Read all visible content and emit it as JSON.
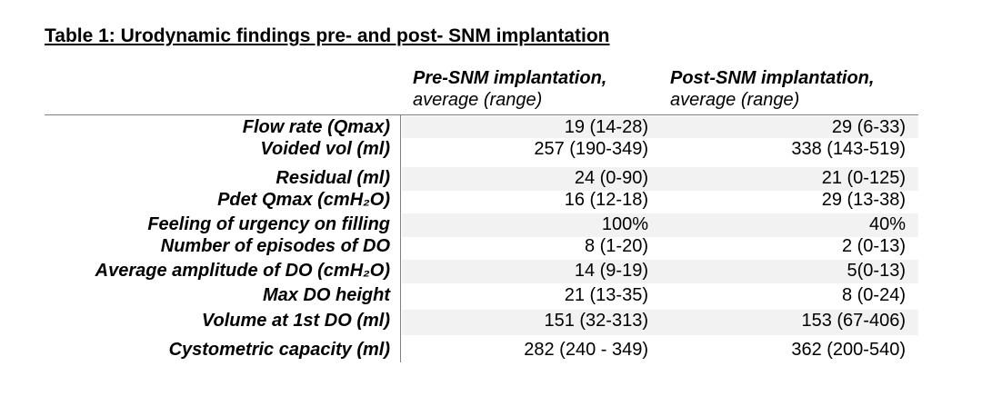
{
  "title": "Table 1: Urodynamic findings pre- and post- SNM implantation",
  "columns": {
    "pre": {
      "heading": "Pre-SNM implantation,",
      "subheading": "average (range)"
    },
    "post": {
      "heading": "Post-SNM implantation,",
      "subheading": "average (range)"
    }
  },
  "rows": [
    {
      "label": "Flow rate (Qmax)",
      "pre": "19 (14-28)",
      "post": "29 (6-33)",
      "shaded": true
    },
    {
      "label": "Voided vol (ml)",
      "pre": "257 (190-349)",
      "post": "338 (143-519)",
      "shaded": false
    },
    {
      "label": "Residual (ml)",
      "pre": "24 (0-90)",
      "post": "21 (0-125)",
      "shaded": true
    },
    {
      "label": "Pdet Qmax (cmH₂O)",
      "pre": "16 (12-18)",
      "post": "29 (13-38)",
      "shaded": false
    },
    {
      "label": "Feeling of urgency on filling",
      "pre": "100%",
      "post": "40%",
      "shaded": true
    },
    {
      "label": "Number of episodes of DO",
      "pre": "8 (1-20)",
      "post": "2 (0-13)",
      "shaded": false
    },
    {
      "label": "Average amplitude of DO (cmH₂O)",
      "pre": "14 (9-19)",
      "post": "5(0-13)",
      "shaded": true
    },
    {
      "label": "Max DO height",
      "pre": "21 (13-35)",
      "post": "8 (0-24)",
      "shaded": false
    },
    {
      "label": "Volume at 1st DO (ml)",
      "pre": "151 (32-313)",
      "post": "153 (67-406)",
      "shaded": true
    },
    {
      "label": "Cystometric capacity (ml)",
      "pre": "282 (240 - 349)",
      "post": "362 (200-540)",
      "shaded": false
    }
  ]
}
